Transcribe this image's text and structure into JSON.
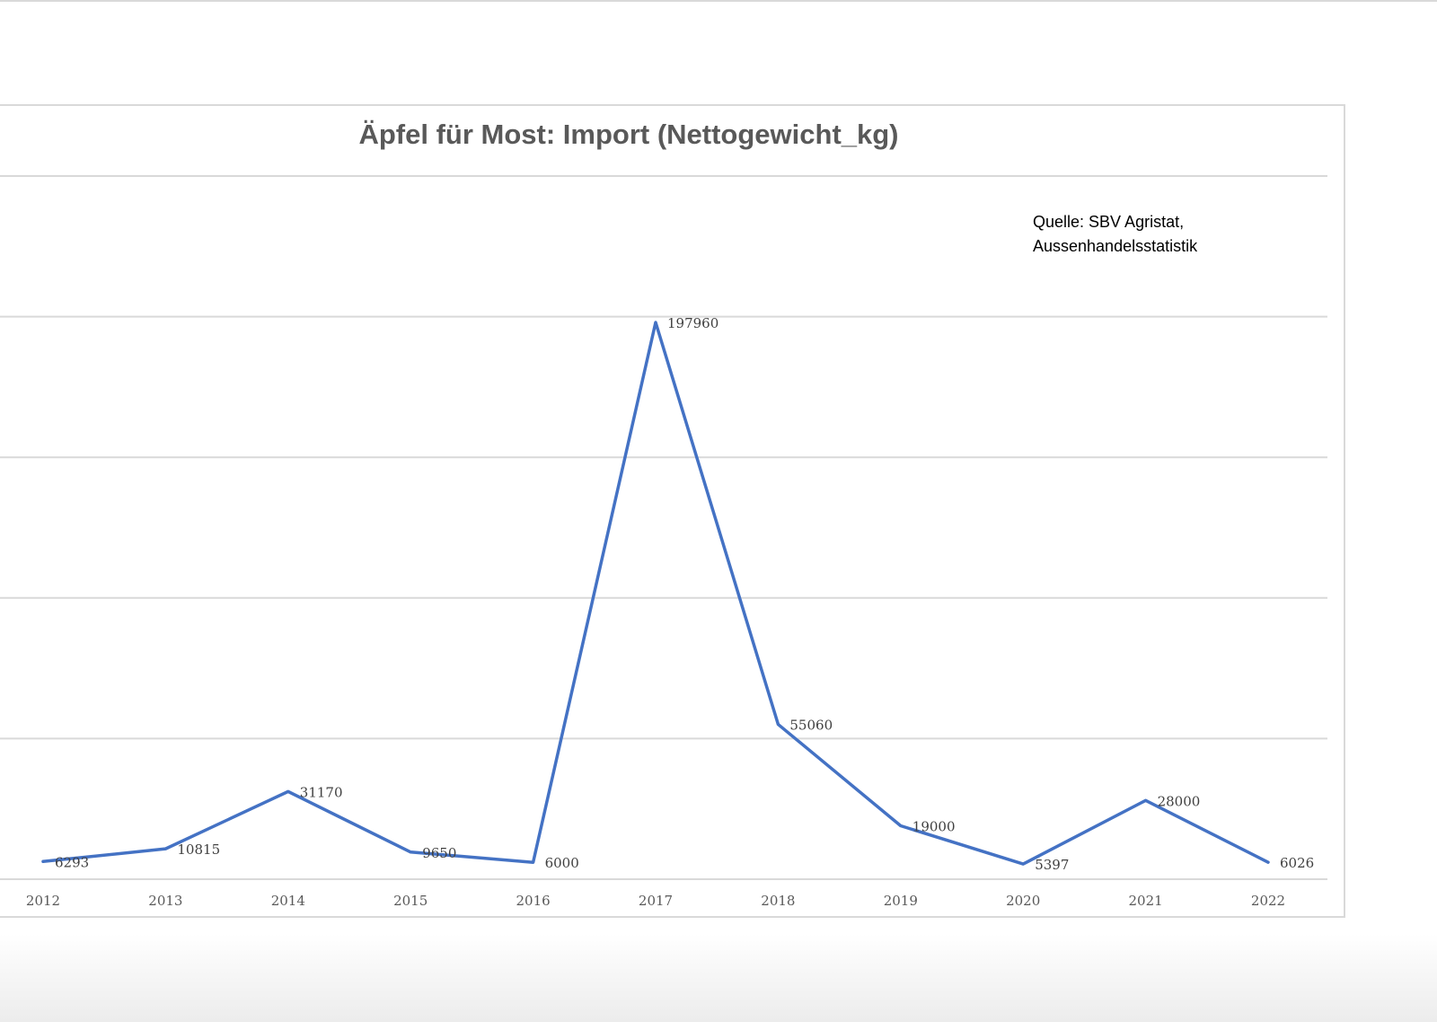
{
  "chart_data": {
    "type": "line",
    "title": "Äpfel für Most: Import (Nettogewicht_kg)",
    "annotation": [
      "Quelle: SBV Agristat,",
      "Aussenhandelsstatistik"
    ],
    "categories": [
      "2012",
      "2013",
      "2014",
      "2015",
      "2016",
      "2017",
      "2018",
      "2019",
      "2020",
      "2021",
      "2022"
    ],
    "series": [
      {
        "values": [
          6293,
          10815,
          31170,
          9650,
          6000,
          197960,
          55060,
          19000,
          5397,
          28000,
          6026
        ],
        "color": "#4472c4"
      }
    ],
    "data_labels": [
      "6293",
      "10815",
      "31170",
      "9650",
      "6000",
      "197960",
      "55060",
      "19000",
      "5397",
      "28000",
      "6026"
    ],
    "ylim": [
      0,
      250000
    ],
    "y_gridlines": [
      0,
      50000,
      100000,
      150000,
      200000,
      250000
    ],
    "grid": true,
    "legend": "none",
    "xlabel": "",
    "ylabel": ""
  }
}
